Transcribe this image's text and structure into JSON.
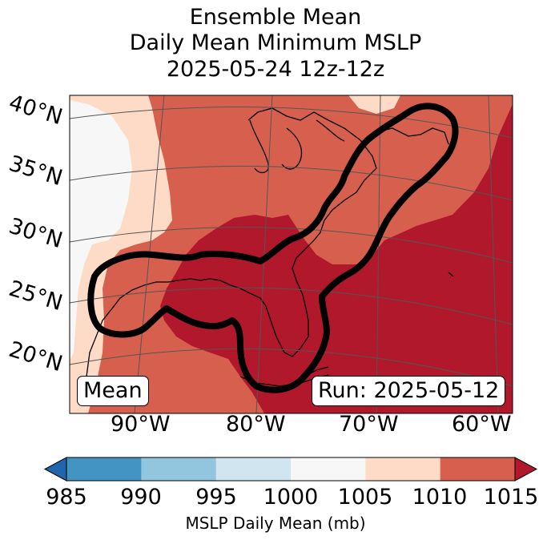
{
  "title": {
    "line1": "Ensemble Mean",
    "line2": "Daily Mean Minimum MSLP",
    "line3": "2025-05-24 12z-12z"
  },
  "map": {
    "lat_labels": [
      "40°N",
      "35°N",
      "30°N",
      "25°N",
      "20°N"
    ],
    "lon_labels": [
      "90°W",
      "80°W",
      "70°W",
      "60°W"
    ],
    "mean_box": "Mean",
    "run_box": "Run: 2025-05-12",
    "fill_colors": {
      "c1000_1005": "#f7f7f7",
      "c1005_1010": "#fddbc7",
      "c1010_1015": "#d6604d",
      "c1015_plus": "#b2182b"
    },
    "contour_color": "#000000",
    "land_outline_color": "#000000",
    "graticule_color": "#555555"
  },
  "colorbar": {
    "label": "MSLP Daily Mean (mb)",
    "ticks": [
      "985",
      "990",
      "995",
      "1000",
      "1005",
      "1010",
      "1015"
    ],
    "colors": [
      "#2166ac",
      "#4393c3",
      "#92c5de",
      "#d1e5f0",
      "#f7f7f7",
      "#fddbc7",
      "#d6604d",
      "#b2182b"
    ]
  }
}
